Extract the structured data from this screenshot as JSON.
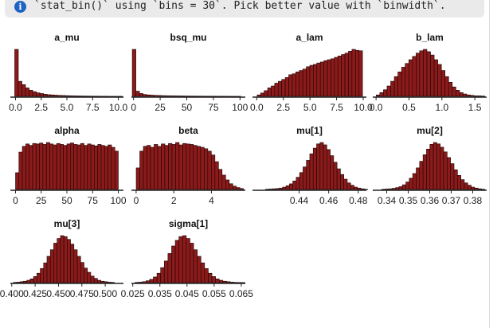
{
  "message": {
    "icon": "info-icon",
    "icon_glyph": "i",
    "text": "`stat_bin()` using `bins = 30`. Pick better value with `binwidth`."
  },
  "colors": {
    "bar_fill": "#8b1a1a",
    "bar_stroke": "#1a0505",
    "axis": "#222222"
  },
  "chart_data": [
    {
      "type": "bar",
      "title": "a_mu",
      "xlim": [
        -0.5,
        10.5
      ],
      "binwidth": 0.35,
      "x": [
        0.1,
        0.45,
        0.8,
        1.15,
        1.5,
        1.85,
        2.2,
        2.55,
        2.9,
        3.25,
        3.6,
        3.95,
        4.3,
        4.65,
        5.0,
        5.35,
        5.7,
        6.05,
        6.4,
        6.75,
        7.1,
        7.45,
        7.8,
        8.15,
        8.5,
        8.85,
        9.2,
        9.55,
        9.9,
        10.25
      ],
      "values": [
        100,
        32,
        25,
        18,
        13,
        10,
        7.5,
        6,
        4.5,
        3.5,
        3,
        2.5,
        2,
        1.8,
        1.5,
        1.2,
        1,
        0.8,
        0.7,
        0.6,
        0.5,
        0.4,
        0.3,
        0.3,
        0.2,
        0.2,
        0.1,
        0.1,
        0.1,
        0.1
      ],
      "ticks": [
        0,
        2.5,
        5,
        7.5,
        10
      ],
      "tick_labels": [
        "0.0",
        "2.5",
        "5.0",
        "7.5",
        "10.0"
      ]
    },
    {
      "type": "bar",
      "title": "bsq_mu",
      "xlim": [
        -2,
        105
      ],
      "binwidth": 3.4,
      "x": [
        0.5,
        3.9,
        7.3,
        10.7,
        14.1,
        17.5,
        20.9,
        24.3,
        27.7,
        31.1,
        34.5,
        37.9,
        41.3,
        44.7,
        48.1,
        51.5,
        54.9,
        58.3,
        61.7,
        65.1,
        68.5,
        71.9,
        75.3,
        78.7,
        82.1,
        85.5,
        88.9,
        92.3,
        95.7,
        99.1
      ],
      "values": [
        100,
        11,
        6,
        4,
        3,
        2.5,
        2,
        1.8,
        1.5,
        1.3,
        1.1,
        1,
        0.9,
        0.8,
        0.7,
        0.6,
        0.5,
        0.5,
        0.4,
        0.4,
        0.3,
        0.3,
        0.3,
        0.2,
        0.2,
        0.2,
        0.1,
        0.1,
        0.1,
        0.1
      ],
      "ticks": [
        0,
        25,
        50,
        75,
        100
      ],
      "tick_labels": [
        "0",
        "25",
        "50",
        "75",
        "100"
      ]
    },
    {
      "type": "bar",
      "title": "a_lam",
      "xlim": [
        -0.4,
        10.3
      ],
      "binwidth": 0.33,
      "x": [
        0.2,
        0.53,
        0.86,
        1.19,
        1.52,
        1.85,
        2.18,
        2.51,
        2.84,
        3.17,
        3.5,
        3.83,
        4.16,
        4.49,
        4.82,
        5.15,
        5.48,
        5.81,
        6.14,
        6.47,
        6.8,
        7.13,
        7.46,
        7.79,
        8.12,
        8.45,
        8.78,
        9.11,
        9.44,
        9.77
      ],
      "values": [
        3,
        7,
        12,
        18,
        22,
        28,
        32,
        36,
        40,
        46,
        48,
        52,
        55,
        58,
        63,
        66,
        68,
        71,
        73,
        76,
        78,
        80,
        83,
        86,
        89,
        92,
        96,
        100,
        98,
        97
      ],
      "ticks": [
        0,
        2.5,
        5,
        7.5,
        10
      ],
      "tick_labels": [
        "0.0",
        "2.5",
        "5.0",
        "7.5",
        "10.0"
      ]
    },
    {
      "type": "bar",
      "title": "b_lam",
      "xlim": [
        -0.05,
        1.68
      ],
      "binwidth": 0.055,
      "x": [
        0.03,
        0.085,
        0.14,
        0.195,
        0.25,
        0.305,
        0.36,
        0.415,
        0.47,
        0.525,
        0.58,
        0.635,
        0.69,
        0.745,
        0.8,
        0.855,
        0.91,
        0.965,
        1.02,
        1.075,
        1.13,
        1.185,
        1.24,
        1.295,
        1.35,
        1.405,
        1.46,
        1.515,
        1.57,
        1.625
      ],
      "values": [
        3,
        8,
        14,
        22,
        32,
        42,
        52,
        62,
        70,
        78,
        85,
        92,
        97,
        100,
        95,
        88,
        78,
        68,
        55,
        42,
        30,
        20,
        13,
        8,
        5,
        3,
        2,
        1,
        1,
        0.5
      ],
      "ticks": [
        0,
        0.5,
        1,
        1.5
      ],
      "tick_labels": [
        "0.0",
        "0.5",
        "1.0",
        "1.5"
      ]
    },
    {
      "type": "bar",
      "title": "alpha",
      "xlim": [
        -5,
        105
      ],
      "binwidth": 3.33,
      "x": [
        1.7,
        5.0,
        8.3,
        11.7,
        15.0,
        18.3,
        21.7,
        25.0,
        28.3,
        31.7,
        35.0,
        38.3,
        41.7,
        45.0,
        48.3,
        51.7,
        55.0,
        58.3,
        61.7,
        65.0,
        68.3,
        71.7,
        75.0,
        78.3,
        81.7,
        85.0,
        88.3,
        91.7,
        95.0,
        98.3
      ],
      "values": [
        35,
        78,
        90,
        95,
        92,
        96,
        95,
        97,
        94,
        98,
        95,
        93,
        96,
        94,
        92,
        95,
        97,
        94,
        93,
        96,
        92,
        95,
        93,
        91,
        94,
        92,
        90,
        93,
        88,
        80
      ],
      "ticks": [
        0,
        25,
        50,
        75,
        100
      ],
      "tick_labels": [
        "0",
        "25",
        "50",
        "75",
        "100"
      ]
    },
    {
      "type": "bar",
      "title": "beta",
      "xlim": [
        -0.25,
        5.8
      ],
      "binwidth": 0.19,
      "x": [
        0.1,
        0.29,
        0.48,
        0.67,
        0.86,
        1.05,
        1.24,
        1.43,
        1.62,
        1.81,
        2.0,
        2.19,
        2.38,
        2.57,
        2.76,
        2.95,
        3.14,
        3.33,
        3.52,
        3.71,
        3.9,
        4.09,
        4.28,
        4.47,
        4.66,
        4.85,
        5.04,
        5.23,
        5.42,
        5.61
      ],
      "values": [
        45,
        80,
        90,
        92,
        88,
        94,
        90,
        95,
        92,
        96,
        94,
        98,
        93,
        96,
        95,
        94,
        92,
        90,
        88,
        85,
        80,
        72,
        58,
        42,
        30,
        20,
        12,
        7,
        4,
        2
      ],
      "ticks": [
        0,
        2,
        4
      ],
      "tick_labels": [
        "0",
        "2",
        "4"
      ]
    },
    {
      "type": "bar",
      "title": "mu[1]",
      "xlim": [
        0.4085,
        0.4855
      ],
      "binwidth": 0.0023,
      "x": [
        0.4185,
        0.4208,
        0.4231,
        0.4254,
        0.4277,
        0.43,
        0.4323,
        0.4346,
        0.4369,
        0.4392,
        0.4415,
        0.4438,
        0.4461,
        0.4484,
        0.4507,
        0.453,
        0.4553,
        0.4576,
        0.4599,
        0.4622,
        0.4645,
        0.4668,
        0.4691,
        0.4714,
        0.4737,
        0.476,
        0.4783,
        0.4806,
        0.4829,
        0.4852
      ],
      "values": [
        0.5,
        1,
        1.5,
        2,
        3,
        5,
        8,
        12,
        18,
        26,
        36,
        48,
        62,
        76,
        88,
        97,
        100,
        95,
        85,
        72,
        58,
        44,
        32,
        22,
        14,
        9,
        5,
        3,
        1.5,
        0.5
      ],
      "ticks": [
        0.44,
        0.46,
        0.48
      ],
      "tick_labels": [
        "0.44",
        "0.46",
        "0.48"
      ]
    },
    {
      "type": "bar",
      "title": "mu[2]",
      "xlim": [
        0.3335,
        0.3865
      ],
      "binwidth": 0.0016,
      "x": [
        0.3385,
        0.3401,
        0.3417,
        0.3433,
        0.3449,
        0.3465,
        0.3481,
        0.3497,
        0.3513,
        0.3529,
        0.3545,
        0.3561,
        0.3577,
        0.3593,
        0.3609,
        0.3625,
        0.3641,
        0.3657,
        0.3673,
        0.3689,
        0.3705,
        0.3721,
        0.3737,
        0.3753,
        0.3769,
        0.3785,
        0.3801,
        0.3817,
        0.3833,
        0.3849
      ],
      "values": [
        0.5,
        1,
        1.5,
        2.5,
        4,
        6,
        10,
        16,
        24,
        34,
        46,
        60,
        74,
        86,
        96,
        100,
        97,
        90,
        80,
        68,
        55,
        42,
        30,
        21,
        14,
        9,
        5,
        3,
        1.5,
        0.5
      ],
      "ticks": [
        0.34,
        0.35,
        0.36,
        0.37,
        0.38
      ],
      "tick_labels": [
        "0.34",
        "0.35",
        "0.36",
        "0.37",
        "0.38"
      ]
    },
    {
      "type": "bar",
      "title": "mu[3]",
      "xlim": [
        0.3985,
        0.5195
      ],
      "binwidth": 0.0036,
      "x": [
        0.4035,
        0.4071,
        0.4107,
        0.4143,
        0.4179,
        0.4215,
        0.4251,
        0.4287,
        0.4323,
        0.4359,
        0.4395,
        0.4431,
        0.4467,
        0.4503,
        0.4539,
        0.4575,
        0.4611,
        0.4647,
        0.4683,
        0.4719,
        0.4755,
        0.4791,
        0.4827,
        0.4863,
        0.4899,
        0.4935,
        0.4971,
        0.5007,
        0.5043,
        0.5079
      ],
      "values": [
        0.5,
        1,
        2,
        3,
        5,
        8,
        13,
        20,
        30,
        42,
        56,
        70,
        84,
        94,
        100,
        98,
        92,
        82,
        70,
        56,
        43,
        31,
        22,
        14,
        9,
        5,
        3,
        2,
        1,
        0.5
      ],
      "ticks": [
        0.4,
        0.425,
        0.45,
        0.475,
        0.5
      ],
      "tick_labels": [
        "0.400",
        "0.425",
        "0.450",
        "0.475",
        "0.500"
      ]
    },
    {
      "type": "bar",
      "title": "sigma[1]",
      "xlim": [
        0.0245,
        0.0665
      ],
      "binwidth": 0.00135,
      "x": [
        0.0265,
        0.02785,
        0.0292,
        0.03055,
        0.0319,
        0.03325,
        0.0346,
        0.03595,
        0.0373,
        0.03865,
        0.04,
        0.04135,
        0.0427,
        0.04405,
        0.0454,
        0.04675,
        0.0481,
        0.04945,
        0.0508,
        0.05215,
        0.0535,
        0.05485,
        0.0562,
        0.05755,
        0.0589,
        0.06025,
        0.0616,
        0.06295,
        0.0643,
        0.06565
      ],
      "values": [
        0.5,
        1,
        2,
        4,
        7,
        12,
        20,
        32,
        46,
        62,
        78,
        90,
        98,
        100,
        94,
        84,
        70,
        56,
        42,
        30,
        20,
        13,
        8,
        5,
        3,
        2,
        1,
        0.5,
        0.3,
        0.2
      ],
      "ticks": [
        0.025,
        0.035,
        0.045,
        0.055,
        0.065
      ],
      "tick_labels": [
        "0.025",
        "0.035",
        "0.045",
        "0.055",
        "0.065"
      ]
    }
  ]
}
